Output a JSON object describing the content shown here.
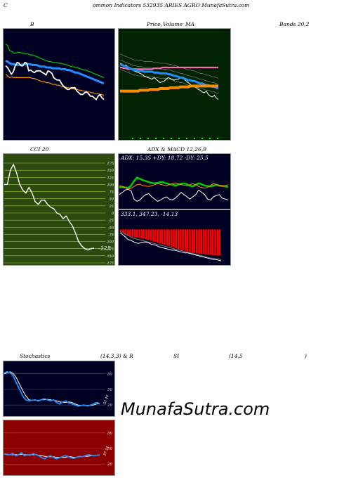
{
  "header": {
    "c_letter": "C",
    "title": "ommon  Indicators 532935 ARIES AGRO MunafaSutra.com"
  },
  "panel_labels": {
    "b": "B",
    "price": "Price,",
    "volume": "Volume",
    "ma": "MA",
    "bands": "Bands 20,2",
    "cci": "CCI 20",
    "adx_macd": "ADX  & MACD 12,26,9",
    "stoch": "Stochastics",
    "stoch_params": "(14,3,3) & R",
    "si": "SI",
    "rsi_params": "(14,5",
    "rsi_close": ")"
  },
  "watermark": "MunafaSutra.com",
  "colors": {
    "navy": "#000022",
    "green_panel": "#002200",
    "cci_panel": "#2d4a0e",
    "red_panel": "#8b0000",
    "blue": "#1e90ff",
    "orange": "#ff8c00",
    "green_line": "#00cc00",
    "white": "#ffffff",
    "pink": "#ff69b4"
  },
  "chart_data": [
    {
      "type": "line",
      "name_key": "bollinger",
      "y_range": [
        0,
        100
      ],
      "series": [
        {
          "role": "upper",
          "color": "#00cc00",
          "values": [
            88,
            86,
            80,
            79,
            77,
            77,
            78,
            78,
            77,
            77,
            76,
            76,
            75,
            75,
            74,
            73,
            72,
            71,
            70,
            69,
            68,
            67,
            67,
            66,
            66,
            66,
            65,
            65,
            64,
            64,
            63,
            62,
            61,
            61,
            60,
            60,
            59,
            58,
            57,
            57,
            56,
            55,
            54,
            53,
            52,
            51,
            50,
            49,
            48
          ]
        },
        {
          "role": "middle",
          "color": "#1e90ff",
          "values": [
            68,
            67,
            65,
            64,
            64,
            63,
            63,
            63,
            63,
            64,
            64,
            64,
            64,
            63,
            63,
            63,
            62,
            61,
            61,
            61,
            60,
            60,
            60,
            59,
            59,
            59,
            59,
            58,
            58,
            58,
            57,
            57,
            56,
            55,
            54,
            54,
            53,
            52,
            51,
            50,
            49,
            48,
            47,
            46,
            45,
            44,
            43,
            42,
            41
          ]
        },
        {
          "role": "lower",
          "color": "#ff8c00",
          "values": [
            52,
            50,
            48,
            49,
            48,
            48,
            48,
            48,
            48,
            48,
            48,
            48,
            48,
            47,
            47,
            46,
            45,
            44,
            43,
            43,
            42,
            42,
            41,
            40,
            40,
            39,
            39,
            38,
            37,
            37,
            36,
            36,
            35,
            35,
            34,
            34,
            33,
            33,
            32,
            32,
            31,
            31,
            30,
            30,
            29,
            29,
            28,
            28,
            27
          ]
        },
        {
          "role": "close",
          "color": "#ffffff",
          "values": [
            62,
            60,
            56,
            52,
            55,
            62,
            66,
            65,
            62,
            62,
            66,
            65,
            56,
            57,
            55,
            54,
            56,
            56,
            56,
            54,
            53,
            51,
            56,
            55,
            53,
            48,
            46,
            45,
            45,
            41,
            38,
            36,
            34,
            34,
            36,
            36,
            36,
            32,
            30,
            28,
            28,
            30,
            31,
            29,
            26,
            26,
            24,
            22,
            26,
            28,
            24,
            22
          ]
        }
      ]
    },
    {
      "type": "line",
      "name_key": "price_ma",
      "y_range": [
        0,
        100
      ],
      "series": [
        {
          "role": "close",
          "color": "#ffffff",
          "values": [
            65,
            64,
            62,
            63,
            60,
            58,
            57,
            56,
            55,
            54,
            53,
            52,
            50,
            49,
            48,
            47,
            46,
            48,
            46,
            44,
            42,
            43,
            44,
            46,
            48,
            47,
            46,
            45,
            46,
            46,
            48,
            47,
            46,
            44,
            42,
            40,
            38,
            37,
            36,
            34,
            33,
            31,
            30,
            32,
            28,
            26,
            25,
            27,
            24,
            22
          ]
        },
        {
          "role": "ma5",
          "color": "#ff69b4",
          "values": [
            60,
            60,
            59,
            59,
            58,
            58,
            58,
            58,
            58,
            58,
            58,
            58,
            58,
            58,
            58,
            58,
            58,
            59,
            59,
            59,
            59,
            60,
            60,
            60,
            60,
            60,
            60,
            60,
            60,
            60,
            60,
            60,
            60,
            60,
            60,
            60,
            60,
            60,
            60,
            60,
            60,
            60,
            60,
            60,
            60,
            60,
            60,
            60,
            60,
            60
          ]
        },
        {
          "role": "ma20",
          "color": "#1e90ff",
          "values": [
            64,
            63,
            62,
            61,
            60,
            59,
            58,
            57,
            57,
            56,
            56,
            56,
            55,
            55,
            55,
            55,
            55,
            54,
            54,
            54,
            53,
            53,
            53,
            53,
            52,
            52,
            51,
            50,
            50,
            49,
            48,
            48,
            47,
            46,
            45,
            45,
            44,
            44,
            43,
            42,
            41,
            41,
            40,
            39,
            39,
            38,
            37,
            37,
            36,
            35
          ]
        },
        {
          "role": "ma_long",
          "color": "#ff8c00",
          "values": [
            32,
            32,
            32,
            32,
            32,
            32,
            32,
            32,
            32,
            32,
            33,
            33,
            33,
            33,
            33,
            34,
            34,
            34,
            34,
            34,
            35,
            35,
            35,
            35,
            35,
            36,
            36,
            36,
            36,
            36,
            37,
            37,
            37,
            37,
            37,
            38,
            38,
            38,
            38,
            38,
            38,
            38,
            38,
            38,
            38,
            38,
            38,
            38,
            38,
            38
          ]
        }
      ]
    },
    {
      "type": "line",
      "name_key": "cci",
      "y_ticks": [
        175,
        150,
        125,
        100,
        75,
        50,
        25,
        0,
        -25,
        -50,
        -75,
        -100,
        -125,
        -150,
        -175
      ],
      "y_range": [
        -175,
        175
      ],
      "last_value_label": "-123",
      "series": [
        {
          "role": "cci",
          "color": "#ffffff",
          "values": [
            100,
            100,
            150,
            170,
            140,
            100,
            80,
            70,
            90,
            70,
            40,
            30,
            45,
            45,
            30,
            20,
            15,
            0,
            -5,
            -20,
            -10,
            -30,
            -45,
            -70,
            -100,
            -115,
            -125,
            -130,
            -125,
            -123
          ]
        }
      ]
    },
    {
      "type": "line",
      "name_key": "adx",
      "stats_text": "ADX: 15.35  +DY: 18.72  -DY: 25.5",
      "y_range": [
        0,
        100
      ],
      "series": [
        {
          "role": "adx",
          "color": "#00cc00",
          "values": [
            46,
            47,
            46,
            45,
            50,
            60,
            68,
            65,
            62,
            60,
            58,
            56,
            55,
            56,
            58,
            57,
            55,
            53,
            52,
            50,
            52,
            54,
            55,
            53,
            50,
            48,
            52,
            55,
            53,
            50,
            49,
            48,
            50,
            52,
            50,
            49,
            48,
            47
          ]
        },
        {
          "role": "plus_di",
          "color": "#ffffff",
          "values": [
            30,
            35,
            40,
            42,
            38,
            20,
            15,
            18,
            25,
            30,
            32,
            25,
            20,
            15,
            18,
            22,
            25,
            20,
            18,
            22,
            28,
            35,
            30,
            25,
            20,
            25,
            30,
            40,
            35,
            30,
            20,
            18,
            25,
            28,
            30,
            22,
            20,
            18
          ]
        },
        {
          "role": "minus_di",
          "color": "#ff8c00",
          "values": [
            50,
            48,
            45,
            42,
            44,
            48,
            52,
            53,
            50,
            49,
            48,
            50,
            52,
            54,
            53,
            51,
            50,
            52,
            54,
            56,
            54,
            52,
            51,
            50,
            52,
            54,
            52,
            48,
            46,
            44,
            46,
            50,
            55,
            52,
            50,
            49,
            50,
            52
          ]
        }
      ]
    },
    {
      "type": "bar",
      "name_key": "macd",
      "stats_text": "333.1,  347.23,  -14.13",
      "y_range": [
        -100,
        30
      ],
      "series": [
        {
          "role": "histogram",
          "color": "#ff0000",
          "values": [
            -5,
            -10,
            -14,
            -18,
            -20,
            -22,
            -24,
            -25,
            -26,
            -27,
            -28,
            -30,
            -32,
            -34,
            -36,
            -38,
            -40,
            -42,
            -44,
            -46,
            -48,
            -50,
            -52,
            -54,
            -56,
            -58,
            -60,
            -62,
            -64,
            -66,
            -68,
            -70,
            -70,
            -72,
            -72,
            -74,
            -74,
            -75,
            -76,
            -76,
            -77,
            -78,
            -78,
            -78
          ]
        },
        {
          "role": "macd",
          "color": "#ffffff",
          "values": [
            -10,
            -16,
            -22,
            -30,
            -32,
            -36,
            -40,
            -42,
            -40,
            -38,
            -38,
            -40,
            -44,
            -46,
            -48,
            -52,
            -54,
            -56,
            -58,
            -60,
            -62,
            -62,
            -64,
            -66,
            -68,
            -70,
            -70,
            -72,
            -74,
            -76,
            -78,
            -80,
            -82,
            -84,
            -86,
            -88,
            -90,
            -90,
            -92,
            -94
          ]
        },
        {
          "role": "signal",
          "color": "#888888",
          "values": [
            -6,
            -10,
            -14,
            -18,
            -22,
            -26,
            -28,
            -30,
            -32,
            -34,
            -36,
            -38,
            -40,
            -42,
            -44,
            -46,
            -48,
            -50,
            -52,
            -54,
            -56,
            -58,
            -60,
            -62,
            -64,
            -66,
            -68,
            -70,
            -72,
            -74,
            -76,
            -78,
            -80,
            -82,
            -84,
            -86,
            -86,
            -88,
            -88,
            -90
          ]
        }
      ]
    },
    {
      "type": "line",
      "name_key": "stochastics",
      "y_ticks": [
        80,
        50,
        20
      ],
      "y_range": [
        0,
        100
      ],
      "last_value_label": "23.46",
      "series": [
        {
          "role": "k",
          "color": "#1e90ff",
          "values": [
            82,
            84,
            82,
            75,
            62,
            50,
            38,
            30,
            28,
            29,
            30,
            28,
            30,
            32,
            30,
            28,
            30,
            25,
            22,
            26,
            28,
            24,
            22,
            20,
            18,
            19,
            20,
            18,
            20,
            22,
            25,
            23
          ]
        },
        {
          "role": "d",
          "color": "#ffffff",
          "values": [
            80,
            82,
            84,
            80,
            72,
            60,
            48,
            38,
            30,
            29,
            29,
            29,
            30,
            30,
            31,
            30,
            29,
            28,
            26,
            25,
            25,
            26,
            25,
            22,
            20,
            19,
            19,
            19,
            19,
            20,
            22,
            23
          ]
        }
      ]
    },
    {
      "type": "line",
      "name_key": "rsi",
      "y_ticks": [
        80,
        50,
        20
      ],
      "y_range": [
        0,
        100
      ],
      "last_value_label": "37.54",
      "series": [
        {
          "role": "rsi",
          "color": "#1e90ff",
          "values": [
            40,
            38,
            38,
            40,
            36,
            38,
            42,
            36,
            38,
            37,
            40,
            38,
            36,
            32,
            30,
            34,
            36,
            33,
            30,
            32,
            34,
            36,
            35,
            32,
            31,
            33,
            35,
            34,
            36,
            38,
            37,
            36,
            37,
            38
          ]
        },
        {
          "role": "rsi_ma",
          "color": "#ffffff",
          "values": [
            39,
            39,
            38,
            38,
            38,
            38,
            39,
            38,
            38,
            38,
            38,
            38,
            37,
            36,
            35,
            34,
            34,
            34,
            33,
            33,
            33,
            33,
            34,
            34,
            33,
            33,
            34,
            34,
            35,
            35,
            36,
            36,
            37,
            37
          ]
        }
      ]
    }
  ]
}
